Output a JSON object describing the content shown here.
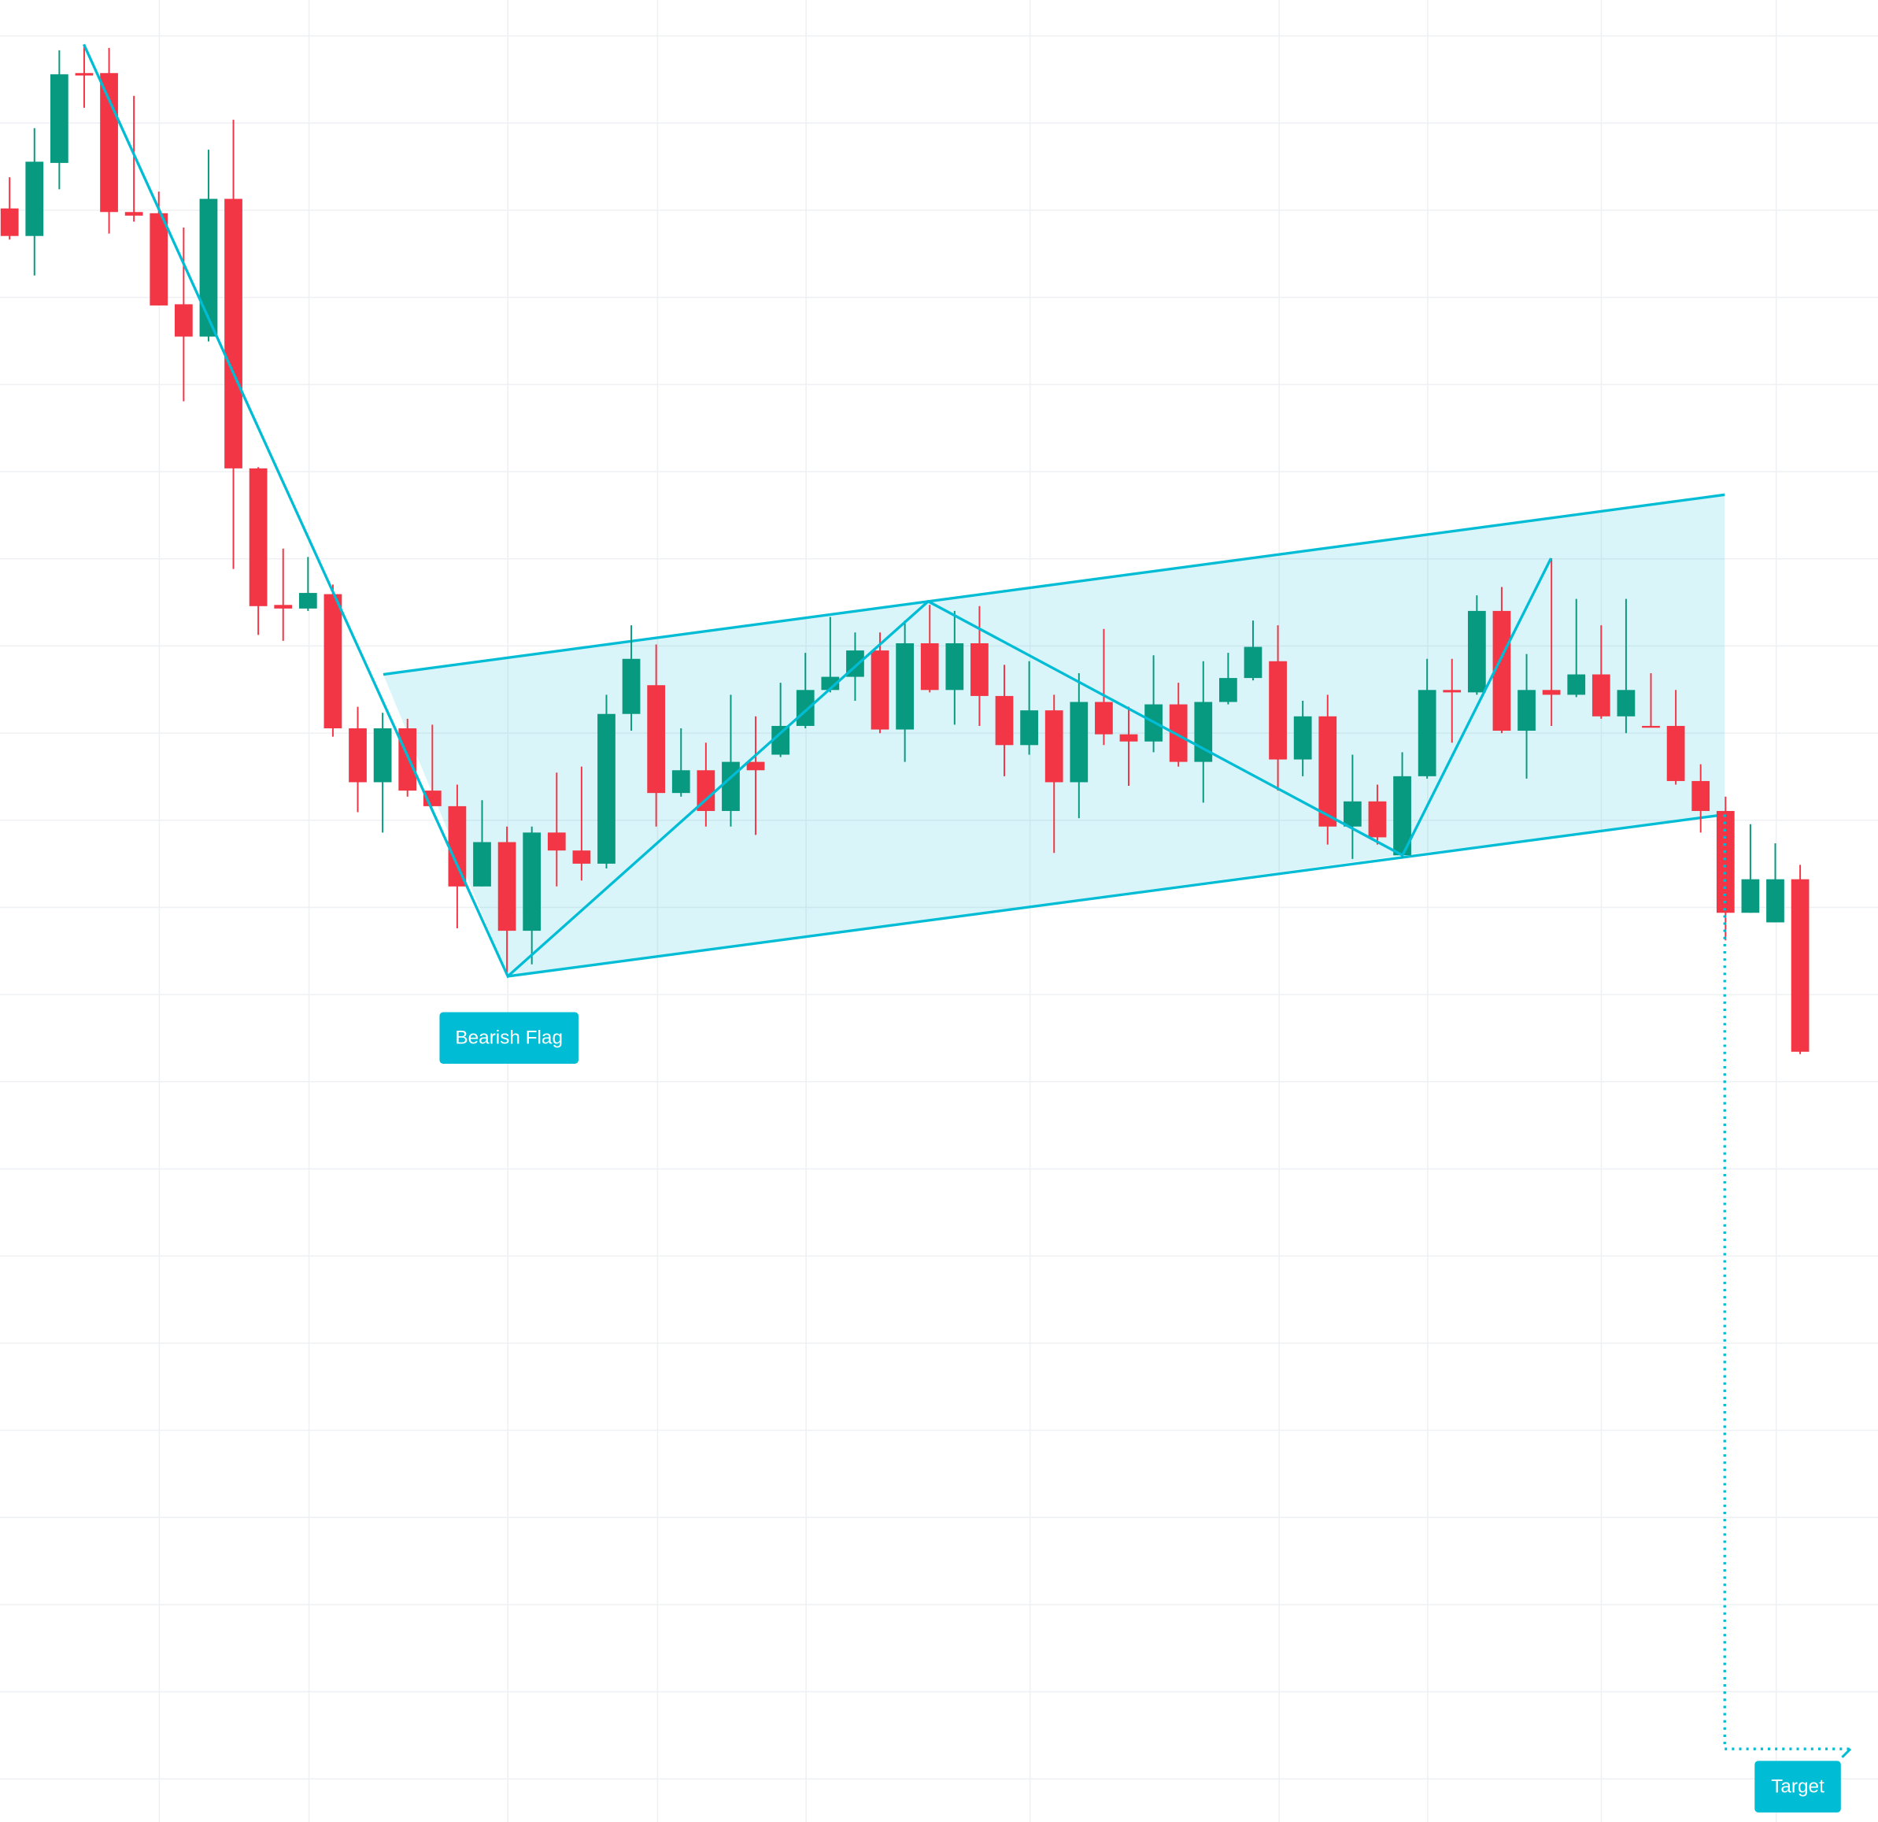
{
  "chart_data": {
    "type": "candlestick",
    "up_color": "#089981",
    "down_color": "#f23645",
    "pattern_color": "#00bcd4",
    "ylim": [
      79,
      1600
    ],
    "grid": true,
    "annotations": [
      "Bearish Flag",
      "Target"
    ],
    "open": [
      1426,
      1403,
      1464,
      1539,
      1539,
      1423,
      1422,
      1346,
      1319,
      1434,
      1209,
      1095,
      1092,
      1104,
      992,
      947,
      992,
      940,
      927,
      860,
      897,
      823,
      905,
      890,
      879,
      1004,
      1028,
      938,
      957,
      923,
      964,
      970,
      994,
      1024,
      1035,
      1057,
      991,
      1063,
      1024,
      1063,
      1019,
      978,
      1007,
      947,
      1014,
      987,
      981,
      1012,
      964,
      1014,
      1034,
      1048,
      966,
      1002,
      910,
      931,
      886,
      952,
      1024,
      1022,
      1090,
      990,
      1024,
      1020,
      1037,
      1002,
      994,
      994,
      948,
      923,
      838,
      830,
      866
    ],
    "high": [
      1452,
      1493,
      1558,
      1562,
      1560,
      1520,
      1440,
      1410,
      1475,
      1500,
      1210,
      1142,
      1135,
      1112,
      1010,
      1005,
      1000,
      995,
      945,
      932,
      910,
      910,
      955,
      960,
      1020,
      1078,
      1062,
      992,
      980,
      1020,
      1002,
      1030,
      1055,
      1085,
      1072,
      1072,
      1082,
      1095,
      1090,
      1094,
      1045,
      1048,
      1020,
      1038,
      1075,
      1010,
      1053,
      1030,
      1048,
      1055,
      1082,
      1078,
      1015,
      1020,
      970,
      945,
      972,
      1050,
      1050,
      1103,
      1110,
      1054,
      1134,
      1100,
      1078,
      1100,
      1038,
      1024,
      962,
      935,
      912,
      896,
      878
    ],
    "low": [
      1400,
      1370,
      1442,
      1510,
      1405,
      1415,
      1345,
      1265,
      1315,
      1125,
      1070,
      1065,
      1090,
      985,
      922,
      905,
      935,
      927,
      825,
      860,
      788,
      795,
      860,
      865,
      875,
      990,
      910,
      935,
      910,
      910,
      903,
      968,
      992,
      1022,
      1015,
      988,
      964,
      1022,
      995,
      994,
      952,
      970,
      888,
      917,
      978,
      944,
      972,
      960,
      930,
      1012,
      1032,
      940,
      952,
      895,
      883,
      895,
      884,
      950,
      980,
      1020,
      988,
      950,
      994,
      1018,
      1000,
      988,
      993,
      945,
      905,
      815,
      838,
      830,
      720
    ],
    "close": [
      1403,
      1465,
      1538,
      1537,
      1423,
      1420,
      1345,
      1319,
      1434,
      1209,
      1094,
      1092,
      1105,
      992,
      947,
      992,
      940,
      927,
      860,
      897,
      823,
      905,
      890,
      879,
      1004,
      1050,
      938,
      957,
      923,
      964,
      957,
      994,
      1024,
      1035,
      1057,
      991,
      1063,
      1024,
      1063,
      1019,
      978,
      1007,
      947,
      1014,
      987,
      981,
      1012,
      964,
      1014,
      1034,
      1060,
      966,
      1002,
      910,
      931,
      901,
      952,
      1024,
      1022,
      1090,
      990,
      1024,
      1020,
      1037,
      1002,
      1024,
      993,
      948,
      923,
      838,
      866,
      866,
      722
    ]
  }
}
